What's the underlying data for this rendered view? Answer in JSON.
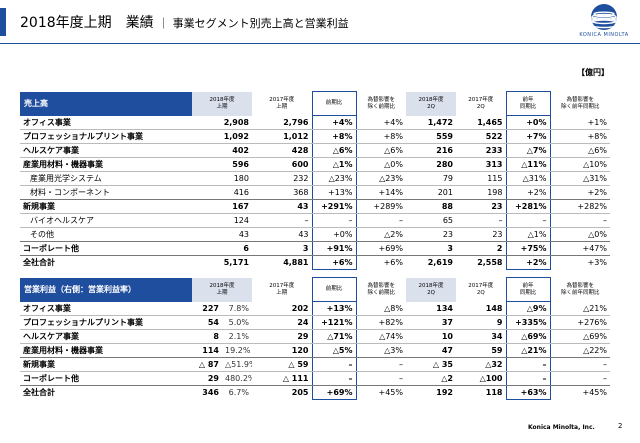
{
  "header": {
    "title": "2018年度上期　業績",
    "subtitle": "｜ 事業セグメント別売上高と営業利益",
    "logo_text": "KONICA MINOLTA"
  },
  "unit": "【億円】",
  "colors": {
    "accent": "#1f4e9e",
    "header_shade": "#dbe1ec"
  },
  "sales": {
    "title": "売上高",
    "headers": [
      "2018年度\n上期",
      "2017年度\n上期",
      "前期比",
      "為替影響を\n除く前期比",
      "2018年度\n2Q",
      "2017年度\n2Q",
      "前年\n同期比",
      "為替影響を\n除く前年同期比"
    ],
    "rows": [
      {
        "label": "オフィス事業",
        "sub": false,
        "v": [
          "2,908",
          "2,796",
          "+4%",
          "+4%",
          "1,472",
          "1,465",
          "+0%",
          "+1%"
        ]
      },
      {
        "label": "プロフェッショナルプリント事業",
        "sub": false,
        "v": [
          "1,092",
          "1,012",
          "+8%",
          "+8%",
          "559",
          "522",
          "+7%",
          "+8%"
        ]
      },
      {
        "label": "ヘルスケア事業",
        "sub": false,
        "v": [
          "402",
          "428",
          "△6%",
          "△6%",
          "216",
          "233",
          "△7%",
          "△6%"
        ]
      },
      {
        "label": "産業用材料・機器事業",
        "sub": false,
        "v": [
          "596",
          "600",
          "△1%",
          "△0%",
          "280",
          "313",
          "△11%",
          "△10%"
        ]
      },
      {
        "label": "産業用光学システム",
        "sub": true,
        "v": [
          "180",
          "232",
          "△23%",
          "△23%",
          "79",
          "115",
          "△31%",
          "△31%"
        ]
      },
      {
        "label": "材料・コンポーネント",
        "sub": true,
        "v": [
          "416",
          "368",
          "+13%",
          "+14%",
          "201",
          "198",
          "+2%",
          "+2%"
        ]
      },
      {
        "label": "新規事業",
        "sub": false,
        "v": [
          "167",
          "43",
          "+291%",
          "+289%",
          "88",
          "23",
          "+281%",
          "+282%"
        ]
      },
      {
        "label": "バイオヘルスケア",
        "sub": true,
        "v": [
          "124",
          "–",
          "–",
          "–",
          "65",
          "–",
          "–",
          "–"
        ]
      },
      {
        "label": "その他",
        "sub": true,
        "v": [
          "43",
          "43",
          "+0%",
          "△2%",
          "23",
          "23",
          "△1%",
          "△0%"
        ]
      },
      {
        "label": "コーポレート他",
        "sub": false,
        "v": [
          "6",
          "3",
          "+91%",
          "+69%",
          "3",
          "2",
          "+75%",
          "+47%"
        ]
      },
      {
        "label": "全社合計",
        "sub": false,
        "v": [
          "5,171",
          "4,881",
          "+6%",
          "+6%",
          "2,619",
          "2,558",
          "+2%",
          "+3%"
        ]
      }
    ]
  },
  "op": {
    "title": "営業利益（右側：営業利益率）",
    "headers": [
      "2018年度\n上期",
      "2017年度\n上期",
      "前期比",
      "為替影響を\n除く前期比",
      "2018年度\n2Q",
      "2017年度\n2Q",
      "前年\n同期比",
      "為替影響を\n除く前年同期比"
    ],
    "rows": [
      {
        "label": "オフィス事業",
        "v": [
          "227",
          "7.8%",
          "202",
          "+13%",
          "△8%",
          "134",
          "148",
          "△9%",
          "△21%"
        ]
      },
      {
        "label": "プロフェッショナルプリント事業",
        "v": [
          "54",
          "5.0%",
          "24",
          "+121%",
          "+82%",
          "37",
          "9",
          "+335%",
          "+276%"
        ]
      },
      {
        "label": "ヘルスケア事業",
        "v": [
          "8",
          "2.1%",
          "29",
          "△71%",
          "△74%",
          "10",
          "34",
          "△69%",
          "△69%"
        ]
      },
      {
        "label": "産業用材料・機器事業",
        "v": [
          "114",
          "19.2%",
          "120",
          "△5%",
          "△3%",
          "47",
          "59",
          "△21%",
          "△22%"
        ]
      },
      {
        "label": "新規事業",
        "v": [
          "△ 87",
          "△51.9%",
          "△ 59",
          "–",
          "–",
          "△ 35",
          "△32",
          "–",
          "–"
        ]
      },
      {
        "label": "コーポレート他",
        "v": [
          "29",
          "480.2%",
          "△ 111",
          "–",
          "–",
          "△2",
          "△100",
          "–",
          "–"
        ]
      },
      {
        "label": "全社合計",
        "v": [
          "346",
          "6.7%",
          "205",
          "+69%",
          "+45%",
          "192",
          "118",
          "+63%",
          "+45%"
        ]
      }
    ]
  },
  "footer": {
    "company": "Konica Minolta, Inc.",
    "page": "2"
  }
}
